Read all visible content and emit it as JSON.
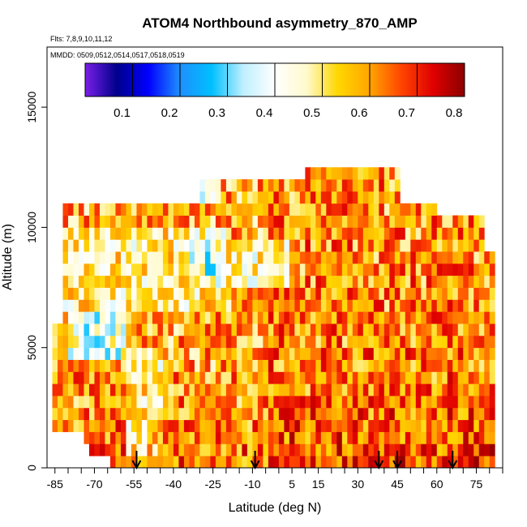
{
  "chart_data": {
    "type": "heatmap",
    "title": "ATOM4 Northbound asymmetry_870_AMP",
    "flights_note": "Flts: 7,8,9,10,11,12",
    "dates_note": "MMDD: 0509,0512,0514,0517,0518,0519",
    "xlabel": "Latitude (deg N)",
    "ylabel": "Altitude (m)",
    "xlim": [
      -88,
      85
    ],
    "ylim": [
      0,
      17500
    ],
    "x_ticks": [
      -85,
      -70,
      -55,
      -40,
      -25,
      -10,
      5,
      15,
      30,
      45,
      60,
      75
    ],
    "x_tick_labels": [
      "-85",
      "-70",
      "-55",
      "-40",
      "-25",
      "-10",
      "5",
      "15",
      "30",
      "45",
      "60",
      "75"
    ],
    "x_minor_step": 5,
    "y_ticks": [
      0,
      5000,
      10000,
      15000
    ],
    "y_tick_labels": [
      "0",
      "5000",
      "10000",
      "15000"
    ],
    "colorbar": {
      "min": 0.0,
      "max": 0.8,
      "ticks": [
        0.1,
        0.2,
        0.3,
        0.4,
        0.5,
        0.6,
        0.7,
        0.8
      ],
      "tick_labels": [
        "0.1",
        "0.2",
        "0.3",
        "0.4",
        "0.5",
        "0.6",
        "0.7",
        "0.8"
      ],
      "colors": [
        "#7a1fe8",
        "#00008b",
        "#0000ff",
        "#1e90ff",
        "#00bfff",
        "#bfefff",
        "#ffffff",
        "#fffacd",
        "#ffd700",
        "#ffa500",
        "#ff4500",
        "#e00000",
        "#8b0000"
      ]
    },
    "latitude_bins": [
      -86,
      -84,
      -82,
      -80,
      -78,
      -76,
      -74,
      -72,
      -70,
      -68,
      -66,
      -64,
      -62,
      -60,
      -58,
      -56,
      -54,
      -52,
      -50,
      -48,
      -46,
      -44,
      -42,
      -40,
      -38,
      -36,
      -34,
      -32,
      -30,
      -28,
      -26,
      -24,
      -22,
      -20,
      -18,
      -16,
      -14,
      -12,
      -10,
      -8,
      -6,
      -4,
      -2,
      0,
      2,
      4,
      6,
      8,
      10,
      12,
      14,
      16,
      18,
      20,
      22,
      24,
      26,
      28,
      30,
      32,
      34,
      36,
      38,
      40,
      42,
      44,
      46,
      48,
      50,
      52,
      54,
      56,
      58,
      60,
      62,
      64,
      66,
      68,
      70,
      72,
      74,
      76,
      78,
      80
    ],
    "altitude_bins": [
      0,
      500,
      1000,
      1500,
      2000,
      2500,
      3000,
      3500,
      4000,
      4500,
      5000,
      5500,
      6000,
      6500,
      7000,
      7500,
      8000,
      8500,
      9000,
      9500,
      10000,
      10500,
      11000,
      11500,
      12000,
      12500
    ],
    "field_description": "Gridded asymmetry parameter at 870 nm; values mostly 0.4-0.8, lowest (blue) in the southern mid-troposphere, highest (red) near the surface at low latitudes",
    "profile_latitudes": [
      -54,
      -9,
      38,
      45,
      66
    ]
  }
}
